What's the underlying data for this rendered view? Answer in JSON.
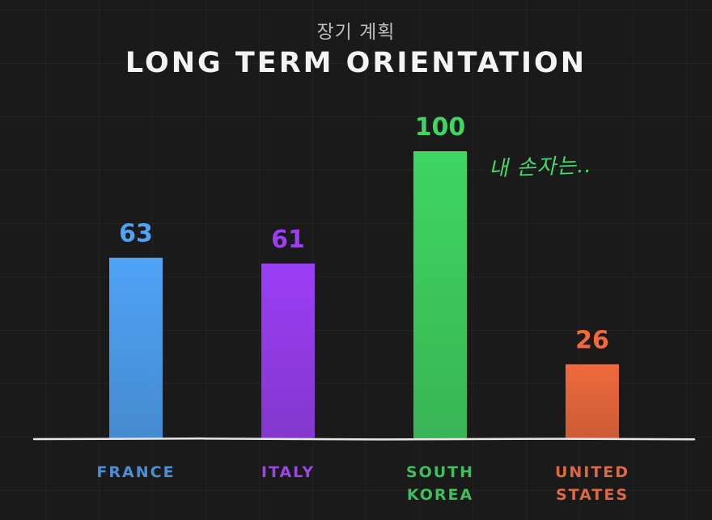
{
  "header": {
    "subtitle": "장기 계획",
    "title": "LONG TERM ORIENTATION"
  },
  "annotation": {
    "text": "내 손자는.."
  },
  "chart_data": {
    "type": "bar",
    "categories": [
      "FRANCE",
      "ITALY",
      "SOUTH KOREA",
      "UNITED STATES"
    ],
    "category_lines": [
      [
        "FRANCE"
      ],
      [
        "ITALY"
      ],
      [
        "SOUTH",
        "KOREA"
      ],
      [
        "UNITED",
        "STATES"
      ]
    ],
    "values": [
      63,
      61,
      100,
      26
    ],
    "value_labels": [
      "63",
      "61",
      "100",
      "26"
    ],
    "colors": [
      "#4fa3f7",
      "#9b3ef5",
      "#3fd662",
      "#f06a3c"
    ],
    "label_colors": [
      "#4a8fd6",
      "#9b45e8",
      "#3fbf5c",
      "#e0673f"
    ],
    "title": "LONG TERM ORIENTATION",
    "xlabel": "",
    "ylabel": "",
    "ylim": [
      0,
      100
    ],
    "grid": true,
    "legend": "none"
  },
  "colors": {
    "background": "#1a1a1a",
    "baseline": "#e8e8e8",
    "title": "#f4f4f4",
    "subtitle": "#bdbdbd",
    "annotation": "#46d86a"
  }
}
